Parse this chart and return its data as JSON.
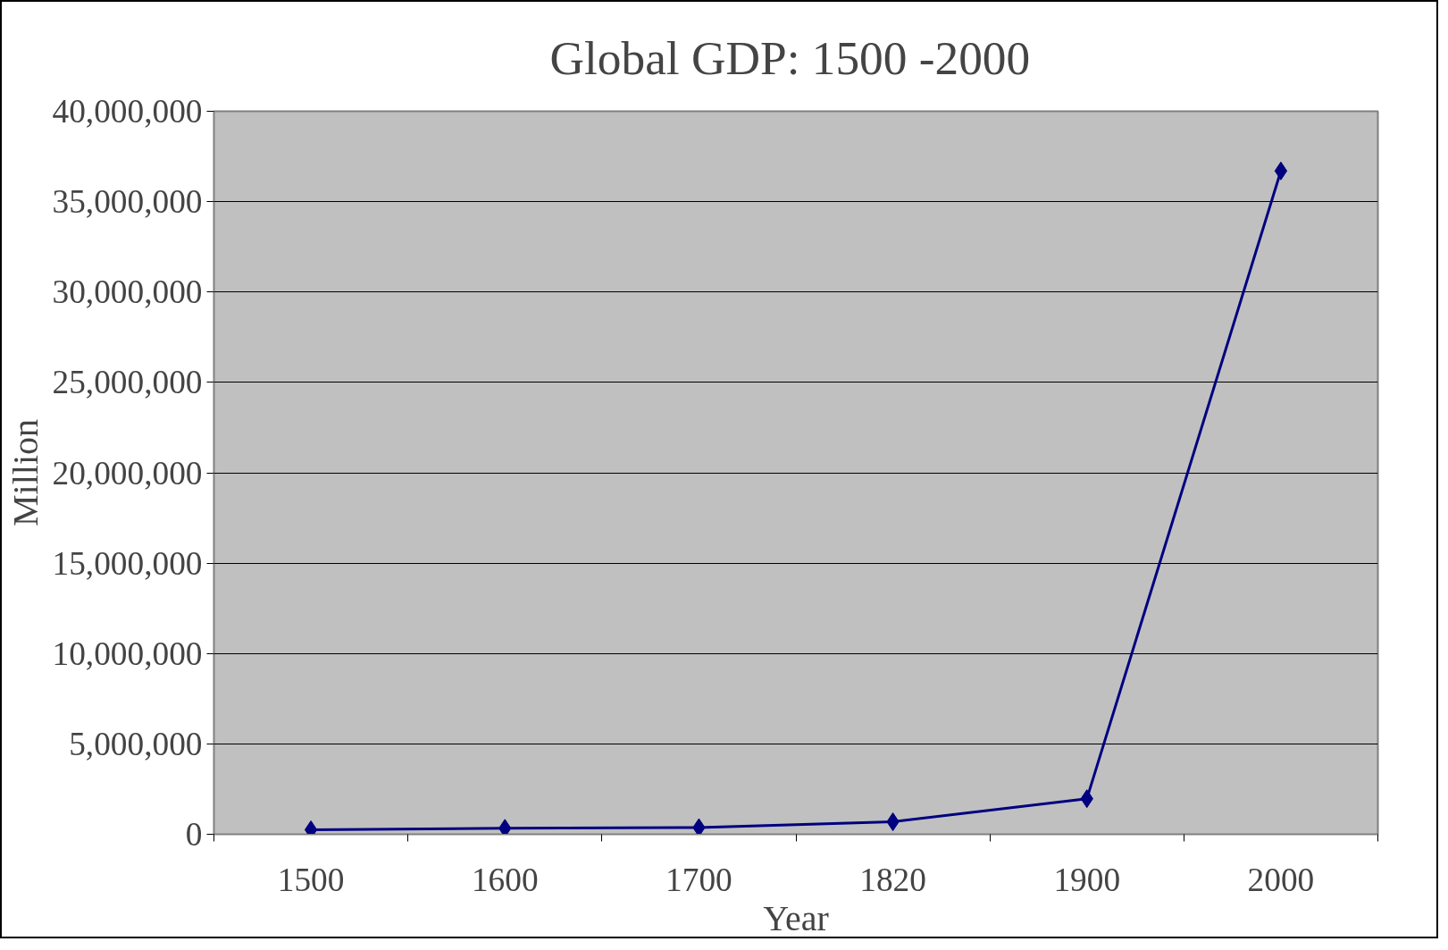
{
  "chart_data": {
    "type": "line",
    "title": "Global GDP:  1500 -2000",
    "xlabel": "Year",
    "ylabel": "Million",
    "categories": [
      "1500",
      "1600",
      "1700",
      "1820",
      "1900",
      "2000"
    ],
    "series": [
      {
        "color": "#000080",
        "values": [
          250000,
          330000,
          370000,
          690000,
          1970000,
          36700000
        ]
      }
    ],
    "ylim": [
      0,
      40000000
    ],
    "yticks": [
      {
        "value": 0,
        "label": "0"
      },
      {
        "value": 5000000,
        "label": "5,000,000"
      },
      {
        "value": 10000000,
        "label": "10,000,000"
      },
      {
        "value": 15000000,
        "label": "15,000,000"
      },
      {
        "value": 20000000,
        "label": "20,000,000"
      },
      {
        "value": 25000000,
        "label": "25,000,000"
      },
      {
        "value": 30000000,
        "label": "30,000,000"
      },
      {
        "value": 35000000,
        "label": "35,000,000"
      },
      {
        "value": 40000000,
        "label": "40,000,000"
      }
    ],
    "grid": "y",
    "marker": "diamond",
    "line_style": "solid"
  }
}
